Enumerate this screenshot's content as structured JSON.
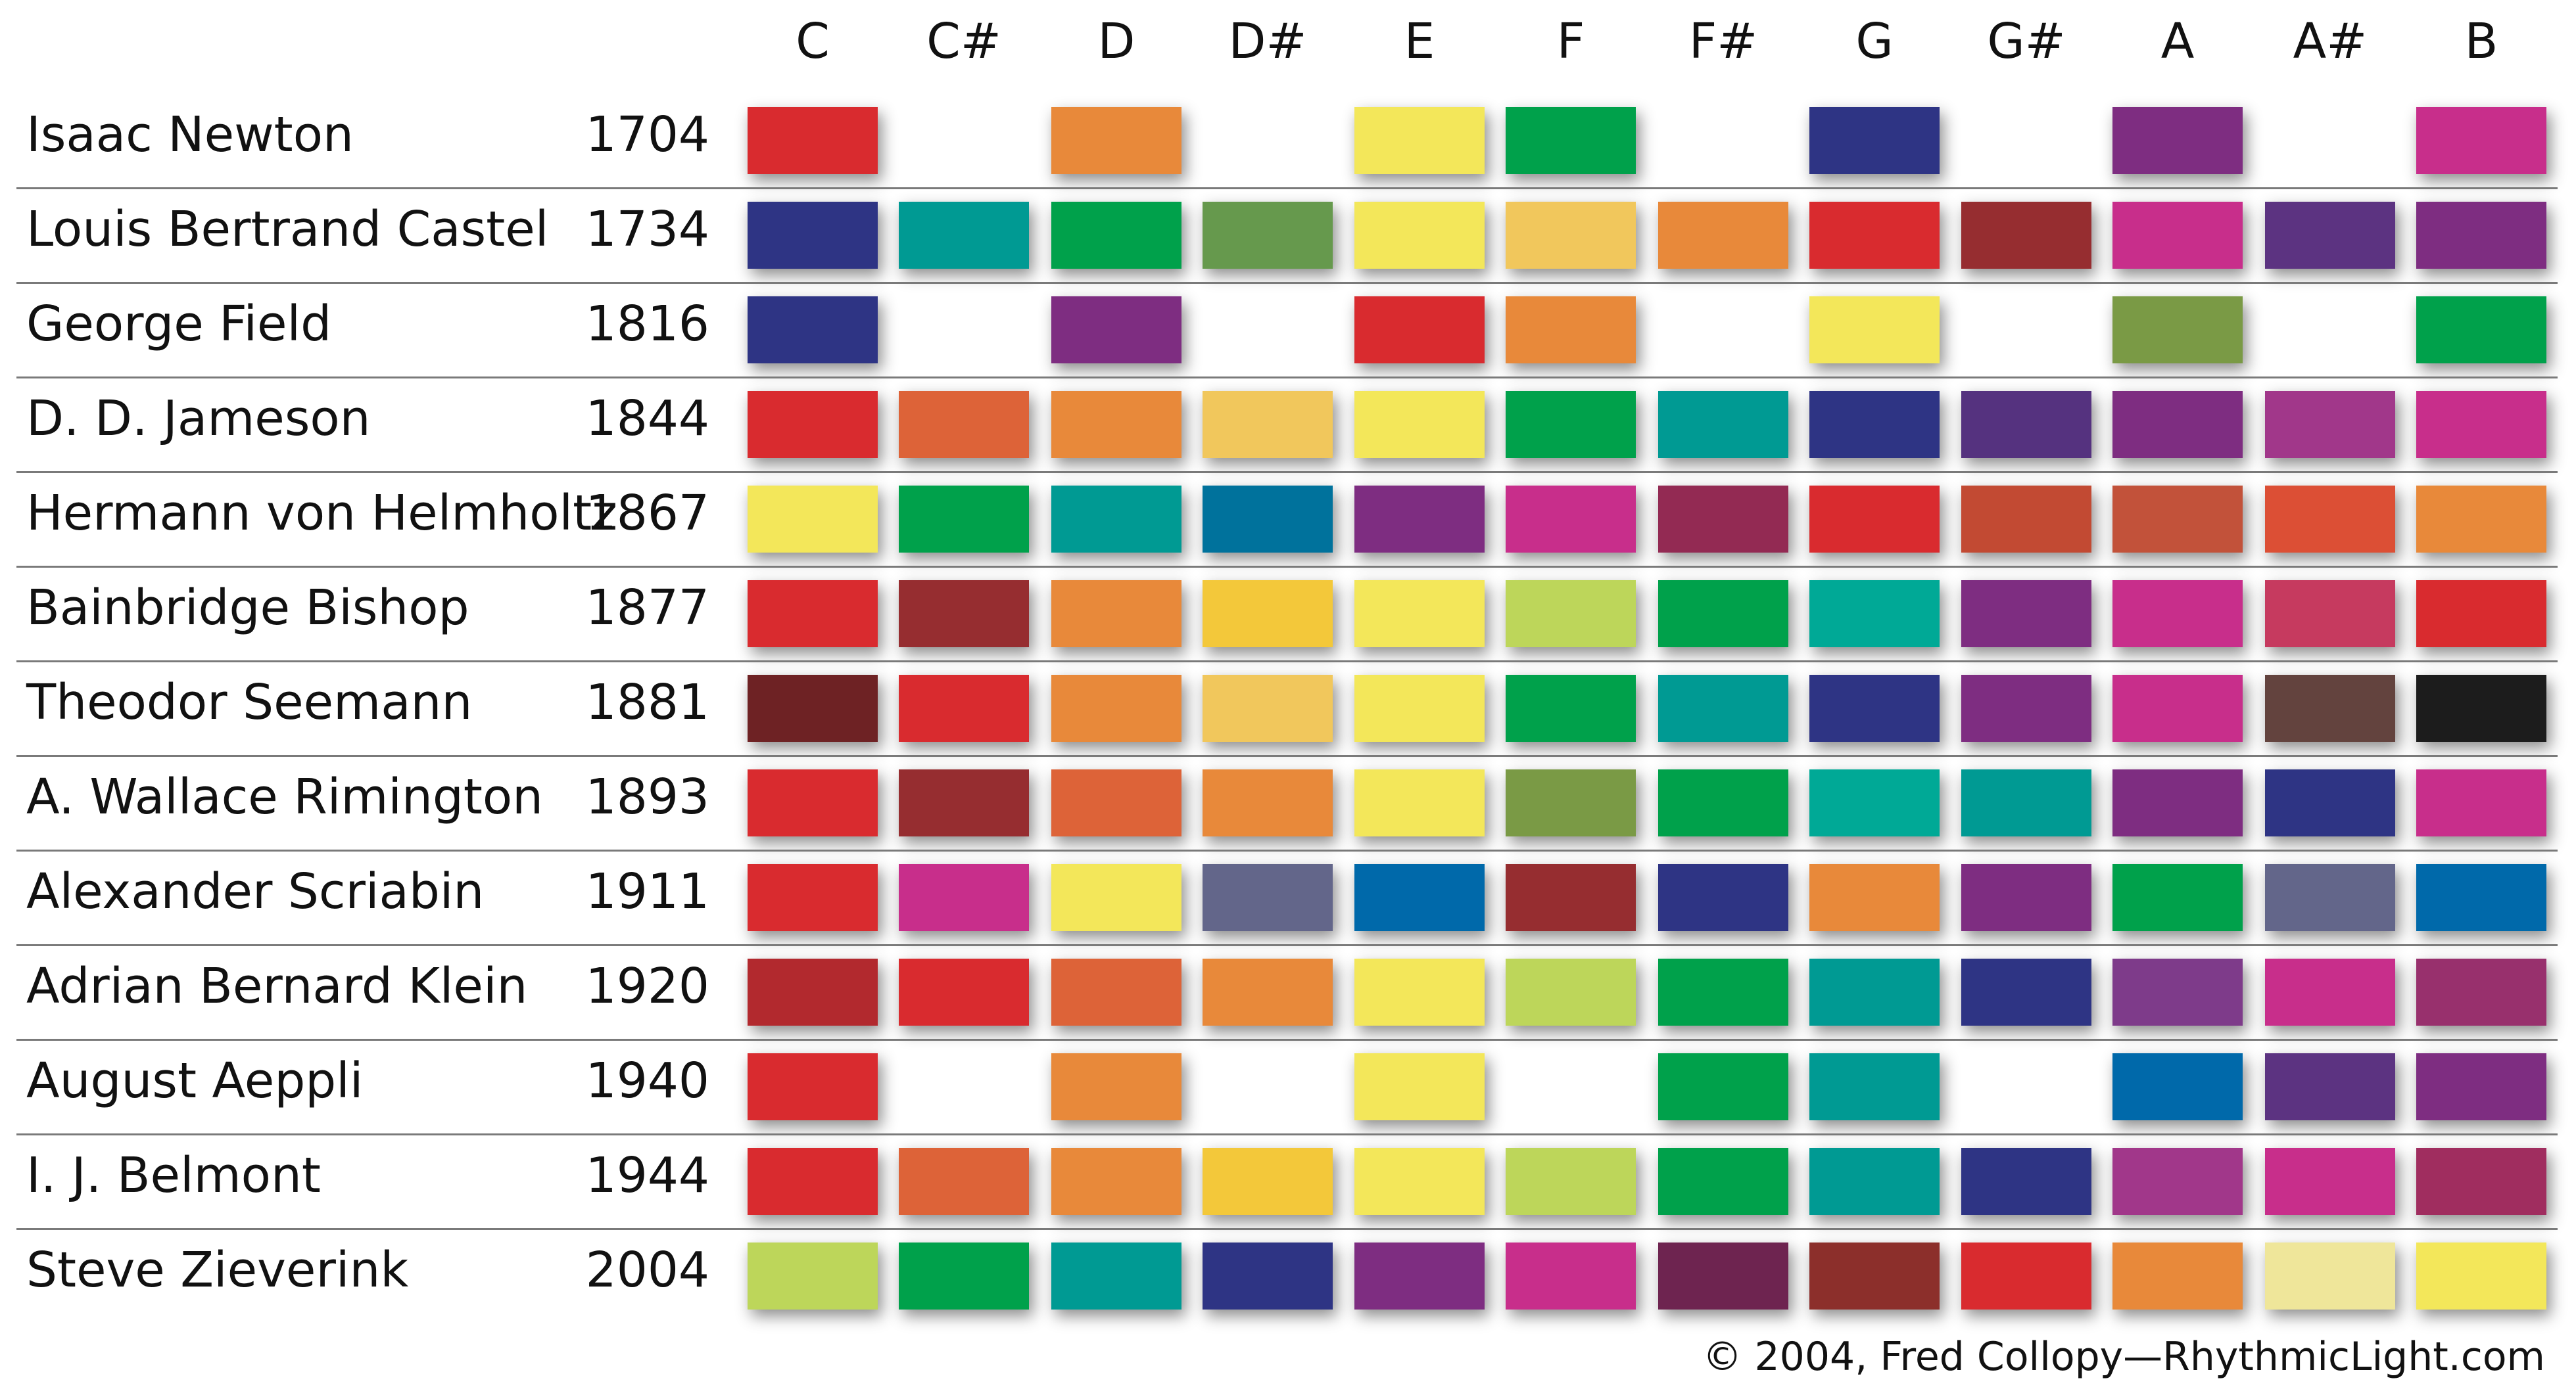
{
  "notes": [
    "C",
    "C#",
    "D",
    "D#",
    "E",
    "F",
    "F#",
    "G",
    "G#",
    "A",
    "A#",
    "B"
  ],
  "rows": [
    {
      "name": "Isaac Newton",
      "year": "1704",
      "colors": [
        "#d92b2f",
        null,
        "#e8893a",
        null,
        "#f3e75a",
        "#00a14b",
        null,
        "#2e3484",
        null,
        "#7e2d81",
        null,
        "#c82e8b"
      ]
    },
    {
      "name": "Louis Bertrand Castel",
      "year": "1734",
      "colors": [
        "#2e3484",
        "#009a93",
        "#00a14b",
        "#66994d",
        "#f3e75a",
        "#f1c75c",
        "#e8893a",
        "#d92b2f",
        "#962d30",
        "#c82e8b",
        "#5c3381",
        "#7e2d81"
      ]
    },
    {
      "name": "George Field",
      "year": "1816",
      "colors": [
        "#2e3484",
        null,
        "#7e2d81",
        null,
        "#d92b2f",
        "#e8893a",
        null,
        "#f3e75a",
        null,
        "#7a9a45",
        null,
        "#00a14b"
      ]
    },
    {
      "name": "D. D. Jameson",
      "year": "1844",
      "colors": [
        "#d92b2f",
        "#dd6338",
        "#e8893a",
        "#f1c75c",
        "#f3e75a",
        "#00a14b",
        "#009a93",
        "#2e3484",
        "#55327f",
        "#7e2d81",
        "#a1378a",
        "#c82e8b"
      ]
    },
    {
      "name": "Hermann von Helmholtz",
      "year": "1867",
      "colors": [
        "#f3e75a",
        "#00a14b",
        "#009a93",
        "#00729c",
        "#7e2d81",
        "#c82e8b",
        "#932a53",
        "#d92b2f",
        "#c24a33",
        "#c2523a",
        "#dc4f35",
        "#e8893a"
      ]
    },
    {
      "name": "Bainbridge Bishop",
      "year": "1877",
      "colors": [
        "#d92b2f",
        "#962d30",
        "#e8893a",
        "#f3c83a",
        "#f3e75a",
        "#bdd65a",
        "#00a14b",
        "#00a996",
        "#7e2d81",
        "#c82e8b",
        "#c63a5f",
        "#d92b2f"
      ]
    },
    {
      "name": "Theodor Seemann",
      "year": "1881",
      "colors": [
        "#6e2224",
        "#d92b2f",
        "#e8893a",
        "#f1c75c",
        "#f3e75a",
        "#00a14b",
        "#009a93",
        "#2e3484",
        "#7e2d81",
        "#c82e8b",
        "#63433e",
        "#1c1c1c"
      ]
    },
    {
      "name": "A. Wallace Rimington",
      "year": "1893",
      "colors": [
        "#d92b2f",
        "#962d30",
        "#dd6338",
        "#e8893a",
        "#f3e75a",
        "#7a9a45",
        "#00a14b",
        "#00a996",
        "#009a93",
        "#7e2d81",
        "#2e3484",
        "#c82e8b"
      ]
    },
    {
      "name": "Alexander Scriabin",
      "year": "1911",
      "colors": [
        "#d92b2f",
        "#c82e8b",
        "#f3e75a",
        "#63668a",
        "#0069aa",
        "#962d30",
        "#2e3484",
        "#e8893a",
        "#7e2d81",
        "#00a14b",
        "#63668a",
        "#0069aa"
      ]
    },
    {
      "name": "Adrian Bernard Klein",
      "year": "1920",
      "colors": [
        "#b2292e",
        "#d92b2f",
        "#dd6338",
        "#e8893a",
        "#f3e75a",
        "#bdd65a",
        "#00a14b",
        "#009a93",
        "#2e3484",
        "#7e3b8a",
        "#c82e8b",
        "#98306d"
      ]
    },
    {
      "name": "August Aeppli",
      "year": "1940",
      "colors": [
        "#d92b2f",
        null,
        "#e8893a",
        null,
        "#f3e75a",
        null,
        "#00a14b",
        "#009a93",
        null,
        "#0069aa",
        "#5c3381",
        "#7e2d81"
      ]
    },
    {
      "name": "I. J. Belmont",
      "year": "1944",
      "colors": [
        "#d92b2f",
        "#dd6338",
        "#e8893a",
        "#f3c83a",
        "#f3e75a",
        "#bdd65a",
        "#00a14b",
        "#009a93",
        "#2e3484",
        "#a1378a",
        "#c82e8b",
        "#a02d5f"
      ]
    },
    {
      "name": "Steve Zieverink",
      "year": "2004",
      "colors": [
        "#bdd65a",
        "#00a14b",
        "#009a93",
        "#2e3484",
        "#7e2d81",
        "#c82e8b",
        "#6e2450",
        "#8c2f2b",
        "#d92b2f",
        "#e8893a",
        "#efe69a",
        "#f3e75a"
      ]
    }
  ],
  "credit": "© 2004, Fred Collopy—RhythmicLight.com"
}
